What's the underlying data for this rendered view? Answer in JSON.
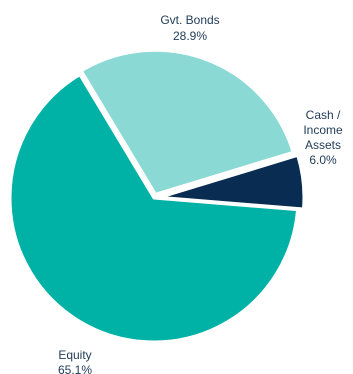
{
  "chart_data": {
    "type": "pie",
    "title": "",
    "slices": [
      {
        "label": "Gvt. Bonds",
        "value_label": "28.9%",
        "value": 28.9,
        "color": "#8ad9d4"
      },
      {
        "label_lines": [
          "Cash /",
          "Income",
          "Assets"
        ],
        "value_label": "6.0%",
        "value": 6.0,
        "color": "#082c52"
      },
      {
        "label": "Equity",
        "value_label": "65.1%",
        "value": 65.1,
        "color": "#00b2a6"
      }
    ],
    "legend": "none"
  }
}
